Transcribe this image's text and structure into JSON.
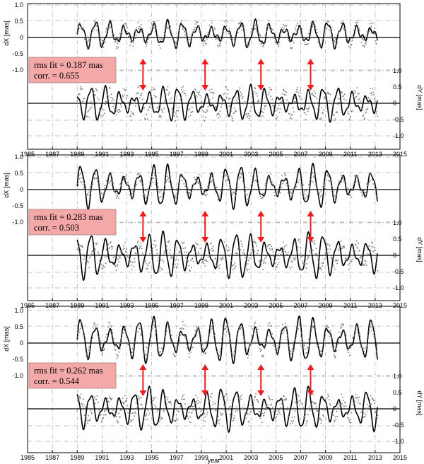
{
  "chart_data": [
    {
      "type": "line",
      "panel": 1,
      "upper_axis": {
        "label": "dX [mas]",
        "ylim": [
          -1.0,
          1.0
        ],
        "ticks": [
          "1.0",
          "0.5",
          "0",
          "-0.5",
          "-1.0"
        ]
      },
      "lower_axis": {
        "label": "dY [mas]",
        "ylim": [
          -1.0,
          1.0
        ],
        "ticks": [
          "1.0",
          "0.5",
          "0",
          "-0.5",
          "-1.0"
        ]
      },
      "xlim": [
        1985,
        2015
      ],
      "x_ticks": [
        "1985",
        "1987",
        "1989",
        "1991",
        "1993",
        "1995",
        "1997",
        "1999",
        "2001",
        "2003",
        "2005",
        "2007",
        "2009",
        "2011",
        "2013",
        "2015"
      ],
      "annotation": {
        "line1": "rms fit = 0.187 mas",
        "line2": "corr. = 0.655"
      },
      "arrow_years": [
        1994.3,
        1999.3,
        2003.8,
        2007.8
      ],
      "series": [
        {
          "style": "model",
          "axis": "upper",
          "x_range": [
            1989.0,
            2013.2
          ],
          "period_years": 1.17,
          "amplitude": 0.17,
          "offset": 0.05
        },
        {
          "style": "observed",
          "axis": "upper",
          "x_range": [
            1989.0,
            2013.2
          ],
          "period_years": 1.17,
          "amplitude": 0.15,
          "offset": 0.05,
          "noise": 0.07
        },
        {
          "style": "model",
          "axis": "lower",
          "x_range": [
            1989.0,
            2013.2
          ],
          "period_years": 1.17,
          "amplitude": 0.22,
          "offset": 0.0
        },
        {
          "style": "observed",
          "axis": "lower",
          "x_range": [
            1989.0,
            2013.2
          ],
          "period_years": 1.17,
          "amplitude": 0.18,
          "offset": 0.0,
          "noise": 0.09
        }
      ]
    },
    {
      "type": "line",
      "panel": 2,
      "upper_axis": {
        "label": "dX [mas]",
        "ylim": [
          -1.0,
          1.0
        ],
        "ticks": [
          "1.0",
          "0.5",
          "0",
          "-0.5",
          "-1.0"
        ]
      },
      "lower_axis": {
        "label": "dY [mas]",
        "ylim": [
          -1.0,
          1.0
        ],
        "ticks": [
          "1.0",
          "0.5",
          "0",
          "-0.5",
          "-1.0"
        ]
      },
      "xlim": [
        1985,
        2015
      ],
      "x_ticks": [
        "1985",
        "1987",
        "1989",
        "1991",
        "1993",
        "1995",
        "1997",
        "1999",
        "2001",
        "2003",
        "2005",
        "2007",
        "2009",
        "2011",
        "2013",
        "2015"
      ],
      "annotation": {
        "line1": "rms fit = 0.283 mas",
        "line2": "corr. = 0.503"
      },
      "arrow_years": [
        1994.3,
        1999.3,
        2003.8,
        2007.8
      ],
      "series": [
        {
          "style": "model",
          "axis": "upper",
          "x_range": [
            1989.0,
            2013.2
          ],
          "period_years": 1.17,
          "amplitude": 0.28,
          "offset": 0.05
        },
        {
          "style": "observed",
          "axis": "upper",
          "x_range": [
            1989.0,
            2013.2
          ],
          "period_years": 1.17,
          "amplitude": 0.14,
          "offset": 0.05,
          "noise": 0.08
        },
        {
          "style": "model",
          "axis": "lower",
          "x_range": [
            1989.0,
            2013.2
          ],
          "period_years": 1.17,
          "amplitude": 0.3,
          "offset": 0.0
        },
        {
          "style": "observed",
          "axis": "lower",
          "x_range": [
            1989.0,
            2013.2
          ],
          "period_years": 1.17,
          "amplitude": 0.16,
          "offset": 0.0,
          "noise": 0.09
        }
      ]
    },
    {
      "type": "line",
      "panel": 3,
      "upper_axis": {
        "label": "dX [mas]",
        "ylim": [
          -1.0,
          1.0
        ],
        "ticks": [
          "1.0",
          "0.5",
          "0",
          "-0.5",
          "-1.0"
        ]
      },
      "lower_axis": {
        "label": "dY [mas]",
        "ylim": [
          -1.0,
          1.0
        ],
        "ticks": [
          "1.0",
          "0.5",
          "0",
          "-0.5",
          "-1.0"
        ]
      },
      "xlim": [
        1985,
        2015
      ],
      "x_ticks": [
        "1985",
        "1987",
        "1989",
        "1991",
        "1993",
        "1995",
        "1997",
        "1999",
        "2001",
        "2003",
        "2005",
        "2007",
        "2009",
        "2011",
        "2013",
        "2015"
      ],
      "xlabel": "year",
      "annotation": {
        "line1": "rms fit = 0.262 mas",
        "line2": "corr. = 0.544"
      },
      "arrow_years": [
        1994.3,
        1999.3,
        2003.8,
        2007.8
      ],
      "series": [
        {
          "style": "model",
          "axis": "upper",
          "x_range": [
            1989.0,
            2013.2
          ],
          "period_years": 1.17,
          "amplitude": 0.3,
          "offset": 0.05
        },
        {
          "style": "observed",
          "axis": "upper",
          "x_range": [
            1989.0,
            2013.2
          ],
          "period_years": 1.17,
          "amplitude": 0.2,
          "offset": 0.05,
          "noise": 0.08
        },
        {
          "style": "model",
          "axis": "lower",
          "x_range": [
            1989.0,
            2013.2
          ],
          "period_years": 1.17,
          "amplitude": 0.28,
          "offset": 0.0
        },
        {
          "style": "observed",
          "axis": "lower",
          "x_range": [
            1989.0,
            2013.2
          ],
          "period_years": 1.17,
          "amplitude": 0.15,
          "offset": 0.0,
          "noise": 0.09
        }
      ]
    }
  ],
  "colors": {
    "model_line": "#000000",
    "observed_points": "#777777",
    "annotation_fill": "#f4a8a8",
    "annotation_stroke": "#b08080",
    "arrow": "#ee1c1c",
    "grid": "#aaaaaa"
  }
}
